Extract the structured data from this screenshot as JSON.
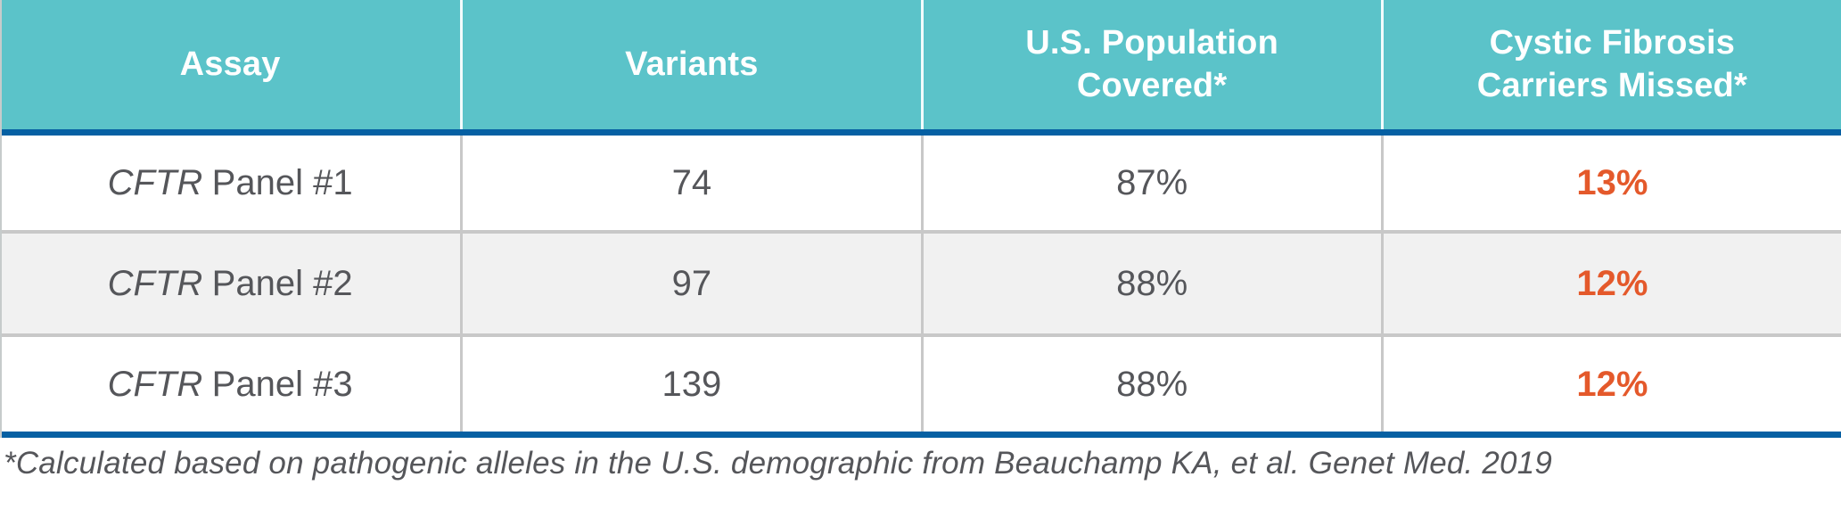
{
  "colors": {
    "header_bg": "#5BC3C9",
    "header_text": "#FFFFFF",
    "rule_blue": "#0660A3",
    "body_text": "#55565A",
    "accent_orange": "#E4592B",
    "alt_row_bg": "#F1F1F1",
    "grid_line": "#C8C8C8"
  },
  "table": {
    "headers": [
      "Assay",
      "Variants",
      "U.S. Population Covered*",
      "Cystic Fibrosis Carriers Missed*"
    ],
    "rows": [
      {
        "assay_gene": "CFTR",
        "assay_label": "Panel #1",
        "variants": "74",
        "population_covered": "87%",
        "carriers_missed": "13%"
      },
      {
        "assay_gene": "CFTR",
        "assay_label": "Panel #2",
        "variants": "97",
        "population_covered": "88%",
        "carriers_missed": "12%"
      },
      {
        "assay_gene": "CFTR",
        "assay_label": "Panel #3",
        "variants": "139",
        "population_covered": "88%",
        "carriers_missed": "12%"
      }
    ],
    "footnote": "*Calculated based on pathogenic alleles in the U.S. demographic from Beauchamp KA, et al. Genet Med. 2019"
  },
  "chart_data": {
    "type": "table",
    "columns": [
      "Assay",
      "Variants",
      "U.S. Population Covered*",
      "Cystic Fibrosis Carriers Missed*"
    ],
    "rows": [
      [
        "CFTR Panel #1",
        74,
        "87%",
        "13%"
      ],
      [
        "CFTR Panel #2",
        97,
        "88%",
        "12%"
      ],
      [
        "CFTR Panel #3",
        139,
        "88%",
        "12%"
      ]
    ],
    "footnote": "*Calculated based on pathogenic alleles in the U.S. demographic from Beauchamp KA, et al. Genet Med. 2019",
    "notes": "Carriers-missed column highlighted in orange; header row teal with white text; zebra striping on middle row"
  }
}
